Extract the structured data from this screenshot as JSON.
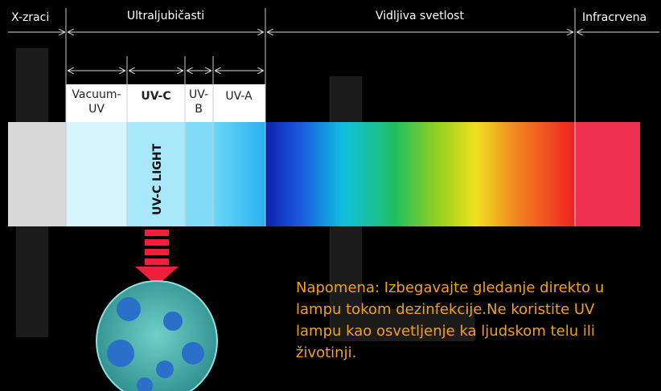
{
  "regions": {
    "x_rays": "X-zraci",
    "ultraviolet": "Ultraljubičasti",
    "visible": "Vidljiva svetlost",
    "infrared": "Infracrvena"
  },
  "subregions": {
    "vacuum_uv": [
      "Vacuum-",
      "UV"
    ],
    "uv_c": "UV-C",
    "uv_b": [
      "UV-",
      "B"
    ],
    "uv_a": "UV-A"
  },
  "lamp_label": "UV-C LIGHT",
  "note": {
    "lines": [
      "Napomena: Izbegavajte gledanje direkto u",
      "lampu tokom dezinfekcije.Ne koristite UV",
      "lampu kao osvetljenje ka ljudskom telu ili",
      "životinji."
    ]
  }
}
